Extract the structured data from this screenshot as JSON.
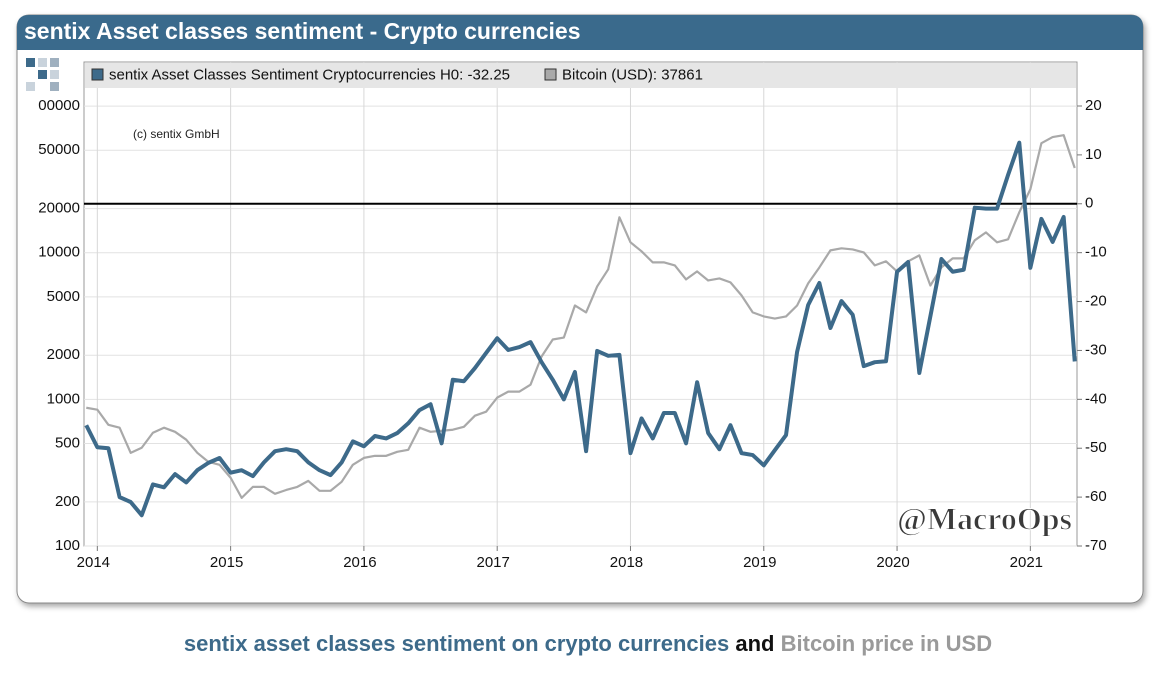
{
  "chart_data": {
    "type": "line",
    "title": "sentix Asset classes sentiment - Crypto currencies",
    "annotations": [
      "(c) sentix GmbH",
      "@MacroOps"
    ],
    "caption": [
      {
        "text": "sentix asset classes sentiment on crypto currencies",
        "color": "#3d6a8a"
      },
      {
        "text": "and",
        "color": "#111111"
      },
      {
        "text": "Bitcoin price in USD",
        "color": "#9a9a9a"
      }
    ],
    "yscale": "log",
    "grid": true,
    "legend": "top",
    "hline": {
      "value": 0,
      "axis": "y2",
      "color": "#000000"
    },
    "xlim": [
      2013.9,
      2021.35
    ],
    "xticks": [
      2014,
      2015,
      2016,
      2017,
      2018,
      2019,
      2020,
      2021
    ],
    "ylim": [
      100,
      200000
    ],
    "yticks": [
      100,
      200,
      500,
      1000,
      2000,
      5000,
      10000,
      20000,
      50000,
      {
        "value": 100000,
        "label": "00000"
      }
    ],
    "y2lim": [
      -70,
      29
    ],
    "y2ticks": [
      -70,
      -60,
      -50,
      -40,
      -30,
      -20,
      -10,
      0,
      10,
      20
    ],
    "x": [
      2013.917,
      2014,
      2014.083,
      2014.167,
      2014.25,
      2014.333,
      2014.417,
      2014.5,
      2014.583,
      2014.667,
      2014.75,
      2014.833,
      2014.917,
      2015,
      2015.083,
      2015.167,
      2015.25,
      2015.333,
      2015.417,
      2015.5,
      2015.583,
      2015.667,
      2015.75,
      2015.833,
      2015.917,
      2016,
      2016.083,
      2016.167,
      2016.25,
      2016.333,
      2016.417,
      2016.5,
      2016.583,
      2016.667,
      2016.75,
      2016.833,
      2016.917,
      2017,
      2017.083,
      2017.167,
      2017.25,
      2017.333,
      2017.417,
      2017.5,
      2017.583,
      2017.667,
      2017.75,
      2017.833,
      2017.917,
      2018,
      2018.083,
      2018.167,
      2018.25,
      2018.333,
      2018.417,
      2018.5,
      2018.583,
      2018.667,
      2018.75,
      2018.833,
      2018.917,
      2019,
      2019.083,
      2019.167,
      2019.25,
      2019.333,
      2019.417,
      2019.5,
      2019.583,
      2019.667,
      2019.75,
      2019.833,
      2019.917,
      2020,
      2020.083,
      2020.167,
      2020.25,
      2020.333,
      2020.417,
      2020.5,
      2020.583,
      2020.667,
      2020.75,
      2020.833,
      2020.917,
      2021,
      2021.083,
      2021.167,
      2021.25,
      2021.333
    ],
    "series": [
      {
        "name": "sentix Asset Classes Sentiment Cryptocurrencies H0: -32.25",
        "color": "#3d6a8a",
        "axis": "y2",
        "values": [
          -45.3,
          -49.8,
          -50,
          -60,
          -61,
          -63.7,
          -57.4,
          -58,
          -55.3,
          -57,
          -54.5,
          -53,
          -52,
          -55,
          -54.5,
          -55.7,
          -52.9,
          -50.6,
          -50.2,
          -50.6,
          -52.9,
          -54.5,
          -55.5,
          -52.9,
          -48.6,
          -49.6,
          -47.5,
          -48,
          -46.9,
          -44.9,
          -42.2,
          -41,
          -49,
          -36,
          -36.3,
          -33.6,
          -30.5,
          -27.5,
          -29.9,
          -29.3,
          -28.3,
          -32.4,
          -36,
          -40,
          -34.4,
          -50.6,
          -30.1,
          -31.1,
          -30.9,
          -51,
          -43.9,
          -48,
          -42.8,
          -42.8,
          -49,
          -36.5,
          -46.9,
          -50.2,
          -45.3,
          -51,
          -51.4,
          -53.5,
          -50.4,
          -47.3,
          -30.3,
          -20.7,
          -16.2,
          -25.4,
          -19.9,
          -22.7,
          -33.2,
          -32.4,
          -32.2,
          -13.9,
          -11.9,
          -34.6,
          -23,
          -11.3,
          -13.9,
          -13.5,
          -0.8,
          -1,
          -1,
          5.9,
          12.5,
          -13.1,
          -3.1,
          -7.8,
          -2.7,
          -32.25
        ]
      },
      {
        "name": "Bitcoin (USD): 37861",
        "color": "#a9a9a9",
        "axis": "y",
        "values": [
          877,
          851,
          671,
          641,
          432,
          468,
          592,
          641,
          601,
          531,
          432,
          375,
          358,
          292,
          213,
          253,
          253,
          227,
          241,
          253,
          278,
          238,
          238,
          274,
          358,
          399,
          412,
          412,
          439,
          453,
          641,
          601,
          611,
          621,
          650,
          774,
          824,
          1028,
          1130,
          1130,
          1260,
          1960,
          2560,
          2640,
          4370,
          3920,
          5890,
          7710,
          17460,
          11780,
          10230,
          8600,
          8600,
          8200,
          6580,
          7460,
          6470,
          6680,
          6280,
          5120,
          3920,
          3680,
          3560,
          3680,
          4370,
          6180,
          7940,
          10380,
          10720,
          10540,
          10060,
          8200,
          8740,
          7460,
          8740,
          9600,
          5980,
          7940,
          9160,
          9160,
          12160,
          13770,
          11780,
          12360,
          18880,
          27100,
          55900,
          61500,
          63400,
          37861
        ]
      }
    ]
  }
}
